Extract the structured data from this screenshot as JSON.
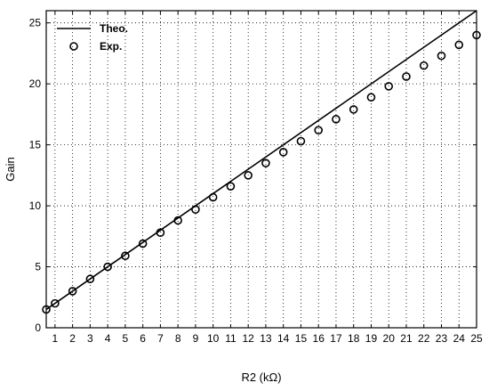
{
  "chart_data": {
    "type": "line",
    "title": "",
    "xlabel": "R2 (kΩ)",
    "ylabel": "Gain",
    "xlim": [
      0.5,
      25
    ],
    "ylim": [
      0,
      26
    ],
    "xticks": [
      1,
      2,
      3,
      4,
      5,
      6,
      7,
      8,
      9,
      10,
      11,
      12,
      13,
      14,
      15,
      16,
      17,
      18,
      19,
      20,
      21,
      22,
      23,
      24,
      25
    ],
    "yticks": [
      0,
      5,
      10,
      15,
      20,
      25
    ],
    "grid": true,
    "legend_position": "top-left",
    "series": [
      {
        "name": "Theo.",
        "style": "line",
        "color": "#000000",
        "x": [
          0.5,
          25
        ],
        "y": [
          1.5,
          26
        ]
      },
      {
        "name": "Exp.",
        "style": "marker-circle",
        "color": "#000000",
        "x": [
          0.5,
          1,
          2,
          3,
          4,
          5,
          6,
          7,
          8,
          9,
          10,
          11,
          12,
          13,
          14,
          15,
          16,
          17,
          18,
          19,
          20,
          21,
          22,
          23,
          24,
          25
        ],
        "y": [
          1.5,
          2.0,
          3.0,
          4.0,
          5.0,
          5.9,
          6.9,
          7.8,
          8.8,
          9.7,
          10.7,
          11.6,
          12.5,
          13.5,
          14.4,
          15.3,
          16.2,
          17.1,
          17.9,
          18.9,
          19.8,
          20.6,
          21.5,
          22.3,
          23.2,
          24.0
        ]
      }
    ]
  }
}
